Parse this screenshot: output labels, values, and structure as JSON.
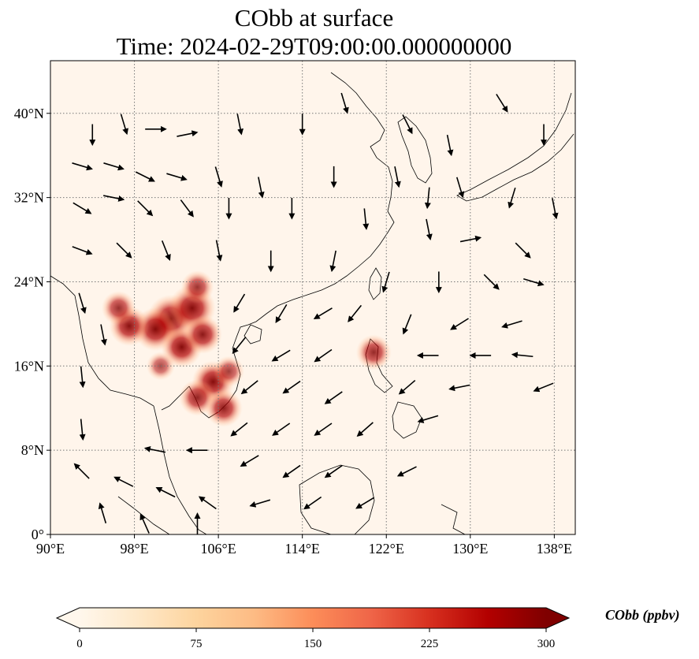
{
  "title": {
    "line1": "CObb at surface",
    "line2": "Time: 2024-02-29T09:00:00.000000000"
  },
  "map": {
    "lon_range": [
      90,
      140
    ],
    "lat_range": [
      0,
      45
    ],
    "lon_ticks": [
      {
        "value": 90,
        "label": "90°E"
      },
      {
        "value": 98,
        "label": "98°E"
      },
      {
        "value": 106,
        "label": "106°E"
      },
      {
        "value": 114,
        "label": "114°E"
      },
      {
        "value": 122,
        "label": "122°E"
      },
      {
        "value": 130,
        "label": "130°E"
      },
      {
        "value": 138,
        "label": "138°E"
      }
    ],
    "lat_ticks": [
      {
        "value": 0,
        "label": "0°"
      },
      {
        "value": 8,
        "label": "8°N"
      },
      {
        "value": 16,
        "label": "16°N"
      },
      {
        "value": 24,
        "label": "24°N"
      },
      {
        "value": 32,
        "label": "32°N"
      },
      {
        "value": 40,
        "label": "40°N"
      }
    ],
    "gridlines": true,
    "background_color": "#fff5eb"
  },
  "colorbar": {
    "label": "CObb (ppbv)",
    "min": 0,
    "max": 300,
    "ticks": [
      {
        "value": 0,
        "label": "0"
      },
      {
        "value": 75,
        "label": "75"
      },
      {
        "value": 150,
        "label": "150"
      },
      {
        "value": 225,
        "label": "225"
      },
      {
        "value": 300,
        "label": "300"
      }
    ],
    "colormap": "OrRd",
    "colors": [
      "#fff7ec",
      "#fee8c8",
      "#fdd49e",
      "#fdbb84",
      "#fc8d59",
      "#ef6548",
      "#d7301f",
      "#b30000",
      "#7f0000"
    ],
    "extend": "both"
  },
  "hotspots": [
    {
      "lon": 101.5,
      "lat": 20.5,
      "value": 280
    },
    {
      "lon": 103.5,
      "lat": 21.5,
      "value": 270
    },
    {
      "lon": 100.0,
      "lat": 19.5,
      "value": 240
    },
    {
      "lon": 97.5,
      "lat": 19.8,
      "value": 210
    },
    {
      "lon": 102.5,
      "lat": 17.8,
      "value": 220
    },
    {
      "lon": 104.5,
      "lat": 19.0,
      "value": 200
    },
    {
      "lon": 104.0,
      "lat": 23.5,
      "value": 150
    },
    {
      "lon": 105.5,
      "lat": 14.5,
      "value": 230
    },
    {
      "lon": 104.0,
      "lat": 13.0,
      "value": 180
    },
    {
      "lon": 106.5,
      "lat": 12.0,
      "value": 190
    },
    {
      "lon": 96.5,
      "lat": 21.5,
      "value": 160
    },
    {
      "lon": 120.8,
      "lat": 17.3,
      "value": 170
    },
    {
      "lon": 100.5,
      "lat": 16.0,
      "value": 110
    },
    {
      "lon": 107.0,
      "lat": 15.5,
      "value": 130
    }
  ],
  "wind_vectors": [
    {
      "lon": 94,
      "lat": 38,
      "u": 0,
      "v": -1
    },
    {
      "lon": 97,
      "lat": 39,
      "u": 0.3,
      "v": -1
    },
    {
      "lon": 100,
      "lat": 38.5,
      "u": 1,
      "v": 0
    },
    {
      "lon": 103,
      "lat": 38,
      "u": 1,
      "v": 0.2
    },
    {
      "lon": 108,
      "lat": 39,
      "u": 0.2,
      "v": -1
    },
    {
      "lon": 114,
      "lat": 39,
      "u": 0,
      "v": -1
    },
    {
      "lon": 118,
      "lat": 41,
      "u": 0.3,
      "v": -1
    },
    {
      "lon": 124,
      "lat": 39,
      "u": 0.5,
      "v": -1
    },
    {
      "lon": 128,
      "lat": 37,
      "u": 0.2,
      "v": -1
    },
    {
      "lon": 133,
      "lat": 41,
      "u": 0.5,
      "v": -0.8
    },
    {
      "lon": 137,
      "lat": 38,
      "u": 0,
      "v": -1
    },
    {
      "lon": 93,
      "lat": 35,
      "u": 1,
      "v": -0.3
    },
    {
      "lon": 96,
      "lat": 35,
      "u": 1,
      "v": -0.3
    },
    {
      "lon": 99,
      "lat": 34,
      "u": 1,
      "v": -0.5
    },
    {
      "lon": 102,
      "lat": 34,
      "u": 1,
      "v": -0.3
    },
    {
      "lon": 106,
      "lat": 34,
      "u": 0.3,
      "v": -1
    },
    {
      "lon": 110,
      "lat": 33,
      "u": 0.2,
      "v": -1
    },
    {
      "lon": 117,
      "lat": 34,
      "u": 0,
      "v": -1
    },
    {
      "lon": 123,
      "lat": 34,
      "u": 0.2,
      "v": -1
    },
    {
      "lon": 126,
      "lat": 32,
      "u": -0.1,
      "v": -1
    },
    {
      "lon": 129,
      "lat": 33,
      "u": 0.3,
      "v": -1
    },
    {
      "lon": 134,
      "lat": 32,
      "u": -0.3,
      "v": -1
    },
    {
      "lon": 138,
      "lat": 31,
      "u": 0.2,
      "v": -1
    },
    {
      "lon": 93,
      "lat": 31,
      "u": 1,
      "v": -0.6
    },
    {
      "lon": 96,
      "lat": 32,
      "u": 1,
      "v": -0.2
    },
    {
      "lon": 99,
      "lat": 31,
      "u": 0.6,
      "v": -0.6
    },
    {
      "lon": 103,
      "lat": 31,
      "u": 0.6,
      "v": -0.8
    },
    {
      "lon": 107,
      "lat": 31,
      "u": 0,
      "v": -1
    },
    {
      "lon": 113,
      "lat": 31,
      "u": 0,
      "v": -1
    },
    {
      "lon": 120,
      "lat": 30,
      "u": 0.1,
      "v": -1
    },
    {
      "lon": 126,
      "lat": 29,
      "u": 0.2,
      "v": -1
    },
    {
      "lon": 130,
      "lat": 28,
      "u": 1,
      "v": 0.2
    },
    {
      "lon": 135,
      "lat": 27,
      "u": 0.5,
      "v": -0.5
    },
    {
      "lon": 93,
      "lat": 27,
      "u": 0.8,
      "v": -0.3
    },
    {
      "lon": 97,
      "lat": 27,
      "u": 0.7,
      "v": -0.7
    },
    {
      "lon": 101,
      "lat": 27,
      "u": 0.4,
      "v": -1
    },
    {
      "lon": 106,
      "lat": 27,
      "u": 0.2,
      "v": -1
    },
    {
      "lon": 111,
      "lat": 26,
      "u": 0,
      "v": -1
    },
    {
      "lon": 117,
      "lat": 26,
      "u": -0.2,
      "v": -1
    },
    {
      "lon": 122,
      "lat": 24,
      "u": -0.3,
      "v": -1
    },
    {
      "lon": 127,
      "lat": 24,
      "u": 0,
      "v": -1
    },
    {
      "lon": 132,
      "lat": 24,
      "u": 0.6,
      "v": -0.6
    },
    {
      "lon": 136,
      "lat": 24,
      "u": 1,
      "v": -0.3
    },
    {
      "lon": 108,
      "lat": 22,
      "u": -0.6,
      "v": -1
    },
    {
      "lon": 112,
      "lat": 21,
      "u": -0.6,
      "v": -1
    },
    {
      "lon": 116,
      "lat": 21,
      "u": -1,
      "v": -0.6
    },
    {
      "lon": 119,
      "lat": 21,
      "u": -0.8,
      "v": -1
    },
    {
      "lon": 124,
      "lat": 20,
      "u": -0.4,
      "v": -1
    },
    {
      "lon": 129,
      "lat": 20,
      "u": -0.8,
      "v": -0.5
    },
    {
      "lon": 134,
      "lat": 20,
      "u": -1,
      "v": -0.3
    },
    {
      "lon": 108,
      "lat": 18,
      "u": -0.8,
      "v": -1
    },
    {
      "lon": 112,
      "lat": 17,
      "u": -1,
      "v": -0.6
    },
    {
      "lon": 116,
      "lat": 17,
      "u": -1,
      "v": -0.7
    },
    {
      "lon": 126,
      "lat": 17,
      "u": -1,
      "v": 0
    },
    {
      "lon": 131,
      "lat": 17,
      "u": -1,
      "v": 0
    },
    {
      "lon": 135,
      "lat": 17,
      "u": -1,
      "v": 0.1
    },
    {
      "lon": 109,
      "lat": 14,
      "u": -1,
      "v": -0.8
    },
    {
      "lon": 113,
      "lat": 14,
      "u": -1,
      "v": -0.7
    },
    {
      "lon": 117,
      "lat": 13,
      "u": -1,
      "v": -0.7
    },
    {
      "lon": 124,
      "lat": 14,
      "u": -0.7,
      "v": -0.6
    },
    {
      "lon": 129,
      "lat": 14,
      "u": -1,
      "v": -0.2
    },
    {
      "lon": 137,
      "lat": 14,
      "u": -1,
      "v": -0.4
    },
    {
      "lon": 108,
      "lat": 10,
      "u": -1,
      "v": -0.8
    },
    {
      "lon": 112,
      "lat": 10,
      "u": -1,
      "v": -0.7
    },
    {
      "lon": 116,
      "lat": 10,
      "u": -1,
      "v": -0.7
    },
    {
      "lon": 120,
      "lat": 10,
      "u": -0.8,
      "v": -0.7
    },
    {
      "lon": 126,
      "lat": 11,
      "u": -1,
      "v": -0.3
    },
    {
      "lon": 100,
      "lat": 8,
      "u": -1,
      "v": 0.2
    },
    {
      "lon": 104,
      "lat": 8,
      "u": -1,
      "v": 0
    },
    {
      "lon": 109,
      "lat": 7,
      "u": -1,
      "v": -0.6
    },
    {
      "lon": 113,
      "lat": 6,
      "u": -1,
      "v": -0.7
    },
    {
      "lon": 117,
      "lat": 6,
      "u": -1,
      "v": -0.7
    },
    {
      "lon": 124,
      "lat": 6,
      "u": -1,
      "v": -0.5
    },
    {
      "lon": 93,
      "lat": 6,
      "u": -0.7,
      "v": 0.7
    },
    {
      "lon": 97,
      "lat": 5,
      "u": -1,
      "v": 0.5
    },
    {
      "lon": 101,
      "lat": 4,
      "u": -1,
      "v": 0.5
    },
    {
      "lon": 105,
      "lat": 3,
      "u": -0.7,
      "v": 0.5
    },
    {
      "lon": 110,
      "lat": 3,
      "u": -1,
      "v": -0.3
    },
    {
      "lon": 115,
      "lat": 3,
      "u": -1,
      "v": -0.7
    },
    {
      "lon": 120,
      "lat": 3,
      "u": -1,
      "v": -0.6
    },
    {
      "lon": 95,
      "lat": 2,
      "u": -0.3,
      "v": 1
    },
    {
      "lon": 99,
      "lat": 1,
      "u": -0.4,
      "v": 0.9
    },
    {
      "lon": 104,
      "lat": 1,
      "u": 0,
      "v": 1
    },
    {
      "lon": 93,
      "lat": 10,
      "u": 0.1,
      "v": -1
    },
    {
      "lon": 93,
      "lat": 15,
      "u": 0.1,
      "v": -1
    },
    {
      "lon": 95,
      "lat": 19,
      "u": 0.2,
      "v": -1
    },
    {
      "lon": 93,
      "lat": 22,
      "u": 0.3,
      "v": -1
    }
  ]
}
